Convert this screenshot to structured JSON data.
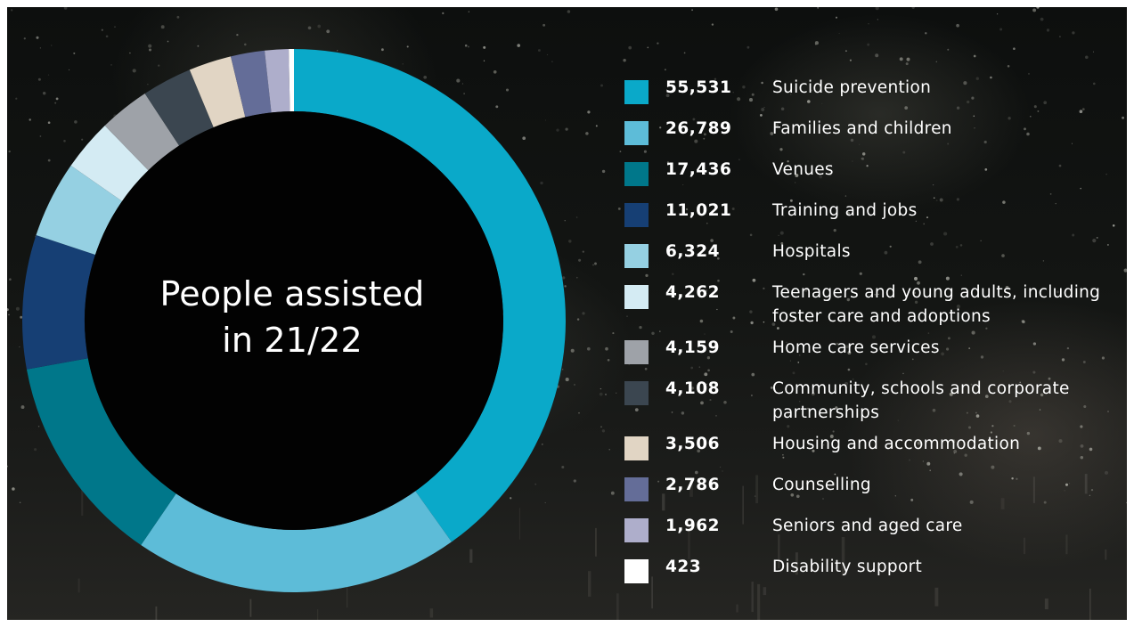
{
  "chart_data": {
    "type": "pie",
    "title": "People assisted in 21/22",
    "title_lines": [
      "People assisted",
      "in 21/22"
    ],
    "legend_placement": "right",
    "series": [
      {
        "value_label": "55,531",
        "value": 55531,
        "name": "Suicide prevention",
        "color": "#0aa9c9"
      },
      {
        "value_label": "26,789",
        "value": 26789,
        "name": "Families and children",
        "color": "#5dbcd8"
      },
      {
        "value_label": "17,436",
        "value": 17436,
        "name": "Venues",
        "color": "#00778a"
      },
      {
        "value_label": "11,021",
        "value": 11021,
        "name": "Training and jobs",
        "color": "#163f74"
      },
      {
        "value_label": "6,324",
        "value": 6324,
        "name": "Hospitals",
        "color": "#95d0e2"
      },
      {
        "value_label": "4,262",
        "value": 4262,
        "name": "Teenagers and young adults, including foster care and adoptions",
        "color": "#d4ebf3"
      },
      {
        "value_label": "4,159",
        "value": 4159,
        "name": "Home care services",
        "color": "#9ea2a8"
      },
      {
        "value_label": "4,108",
        "value": 4108,
        "name": "Community, schools and corporate partnerships",
        "color": "#3b4650"
      },
      {
        "value_label": "3,506",
        "value": 3506,
        "name": "Housing and accommodation",
        "color": "#e1d5c4"
      },
      {
        "value_label": "2,786",
        "value": 2786,
        "name": "Counselling",
        "color": "#646d98"
      },
      {
        "value_label": "1,962",
        "value": 1962,
        "name": "Seniors and aged care",
        "color": "#aeaecb"
      },
      {
        "value_label": "423",
        "value": 423,
        "name": "Disability support",
        "color": "#ffffff"
      }
    ]
  }
}
